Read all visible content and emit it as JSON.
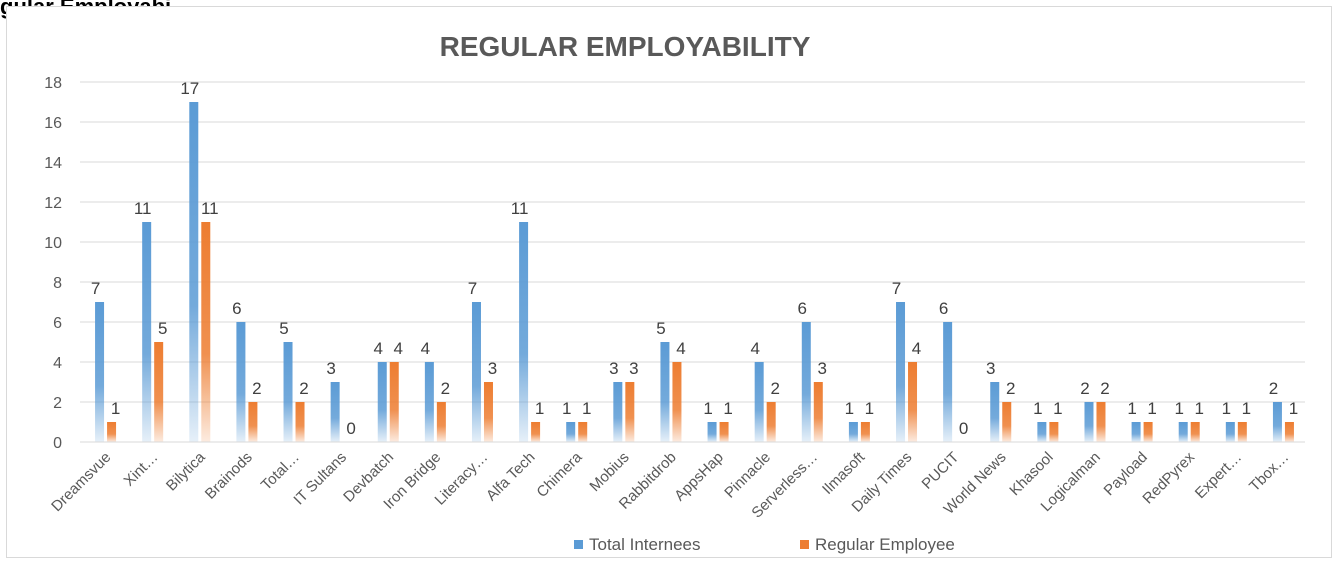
{
  "page": {
    "heading": "gular Employabi"
  },
  "chart_data": {
    "type": "bar",
    "title": "REGULAR EMPLOYABILITY",
    "xlabel": "",
    "ylabel": "",
    "ylim": [
      0,
      18
    ],
    "yticks": [
      0,
      2,
      4,
      6,
      8,
      10,
      12,
      14,
      16,
      18
    ],
    "grid": true,
    "legend_position": "bottom",
    "categories": [
      "Dreamsvue",
      "Xint…",
      "Bilytica",
      "Brainods",
      "Total…",
      "IT Sultans",
      "Devbatch",
      "Iron Bridge",
      "Literacy…",
      "Alfa Tech",
      "Chimera",
      "Mobius",
      "Rabbitdrob",
      "AppsHap",
      "Pinnacle",
      "Serverless…",
      "Ilmasoft",
      "Daily Times",
      "PUCIT",
      "World News",
      "Khasool",
      "Logicalman",
      "Payload",
      "RedPyrex",
      "Expert…",
      "Tbox…"
    ],
    "series": [
      {
        "name": "Total Internees",
        "color": "#5b9bd5",
        "values": [
          7,
          11,
          17,
          6,
          5,
          3,
          4,
          4,
          7,
          11,
          1,
          3,
          5,
          1,
          4,
          6,
          1,
          7,
          6,
          3,
          1,
          2,
          1,
          1,
          1,
          2
        ]
      },
      {
        "name": "Regular Employee",
        "color": "#ed7d31",
        "values": [
          1,
          5,
          11,
          2,
          2,
          0,
          4,
          2,
          3,
          1,
          1,
          3,
          4,
          1,
          2,
          3,
          1,
          4,
          0,
          2,
          1,
          2,
          1,
          1,
          1,
          1
        ]
      }
    ]
  }
}
